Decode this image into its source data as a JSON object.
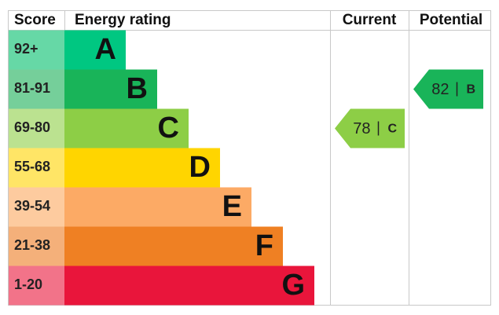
{
  "header": {
    "score": "Score",
    "energy_rating": "Energy rating",
    "current": "Current",
    "potential": "Potential"
  },
  "bands": [
    {
      "range": "92+",
      "letter": "A"
    },
    {
      "range": "81-91",
      "letter": "B"
    },
    {
      "range": "69-80",
      "letter": "C"
    },
    {
      "range": "55-68",
      "letter": "D"
    },
    {
      "range": "39-54",
      "letter": "E"
    },
    {
      "range": "21-38",
      "letter": "F"
    },
    {
      "range": "1-20",
      "letter": "G"
    }
  ],
  "current": {
    "score": 78,
    "rating": "C"
  },
  "potential": {
    "score": 82,
    "rating": "B"
  }
}
